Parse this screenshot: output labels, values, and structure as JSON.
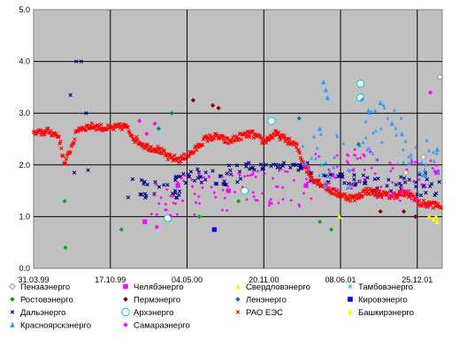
{
  "chart_data": {
    "type": "scatter",
    "grid": true,
    "legend_position": "bottom",
    "plot_background": "#c0c0c0",
    "ylim": [
      0.0,
      5.0
    ],
    "y_ticks": [
      {
        "value": 0,
        "label": "0.0"
      },
      {
        "value": 1,
        "label": "1.0"
      },
      {
        "value": 2,
        "label": "2.0"
      },
      {
        "value": 3,
        "label": "3.0"
      },
      {
        "value": 4,
        "label": "4.0"
      },
      {
        "value": 5,
        "label": "5.0"
      }
    ],
    "x_range": [
      "1999-03-31",
      "2002-02-28"
    ],
    "x_ticks": [
      {
        "date": "1999-03-31",
        "label": "31.03.99"
      },
      {
        "date": "1999-10-17",
        "label": "17.10.99"
      },
      {
        "date": "2000-05-04",
        "label": "04.05.00"
      },
      {
        "date": "2000-11-20",
        "label": "20.11.00"
      },
      {
        "date": "2001-06-08",
        "label": "08.06.01"
      },
      {
        "date": "2001-12-25",
        "label": "25.12.01"
      }
    ],
    "series": [
      {
        "name": "Пензаэнерго",
        "color": "#999999",
        "marker": "diamond-open",
        "points": [
          [
            "2002-02-22",
            3.7
          ],
          [
            "2002-01-10",
            2.15
          ],
          [
            "2001-11-25",
            1.85
          ]
        ]
      },
      {
        "name": "Челябэнерго",
        "color": "#ff00ff",
        "marker": "square",
        "points": [
          [
            "2000-01-15",
            0.9
          ],
          [
            "2000-04-10",
            1.6
          ],
          [
            "2000-08-20",
            1.5
          ],
          [
            "2001-03-10",
            1.6
          ],
          [
            "2002-01-20",
            1.2
          ]
        ]
      },
      {
        "name": "Свердловэнерго",
        "color": "#ffff00",
        "marker": "triangle",
        "points": [
          [
            "2001-06-05",
            1.0
          ],
          [
            "2002-01-25",
            1.0
          ],
          [
            "2002-02-15",
            0.9
          ]
        ]
      },
      {
        "name": "Тамбовэнерго",
        "color": "#00cccc",
        "marker": "x",
        "points": [
          [
            "2001-04-20",
            2.0
          ],
          [
            "2001-09-10",
            2.1
          ]
        ]
      },
      {
        "name": "Ростовэнерго",
        "color": "#00aa00",
        "marker": "diamond",
        "points": [
          [
            "1999-06-20",
            1.3
          ],
          [
            "1999-06-22",
            0.4
          ],
          [
            "1999-11-15",
            0.75
          ],
          [
            "2000-06-05",
            1.0
          ],
          [
            "2000-09-15",
            1.3
          ],
          [
            "2001-04-15",
            0.9
          ],
          [
            "2001-05-15",
            0.75
          ],
          [
            "2001-02-25",
            2.0
          ]
        ]
      },
      {
        "name": "Пермэнерго",
        "color": "#800000",
        "marker": "diamond",
        "points": [
          [
            "2000-05-20",
            3.25
          ],
          [
            "2000-07-10",
            3.15
          ],
          [
            "2000-07-25",
            3.1
          ],
          [
            "2001-09-20",
            1.1
          ],
          [
            "2001-11-20",
            1.1
          ],
          [
            "2001-12-20",
            1.0
          ]
        ]
      },
      {
        "name": "Ленэнерго",
        "color": "#008080",
        "marker": "diamond",
        "points": [
          [
            "2000-01-05",
            2.4
          ],
          [
            "2000-02-20",
            2.7
          ],
          [
            "2000-03-25",
            3.0
          ],
          [
            "2001-02-20",
            2.9
          ],
          [
            "2001-07-25",
            2.4
          ]
        ]
      },
      {
        "name": "Кировэнерго",
        "color": "#0000ff",
        "marker": "square",
        "points": [
          [
            "2000-07-14",
            0.75
          ]
        ]
      },
      {
        "name": "Дальэнерго",
        "color": "#000080",
        "marker": "x",
        "points": [
          [
            "1999-07-05",
            3.35
          ],
          [
            "1999-07-20",
            4.0
          ],
          [
            "1999-08-02",
            4.0
          ],
          [
            "1999-08-15",
            3.0
          ],
          [
            "1999-07-15",
            1.85
          ],
          [
            "1999-08-20",
            1.9
          ]
        ],
        "bands": [
          {
            "from": "1999-12-01",
            "to": "2000-04-15",
            "low": 1.35,
            "high": 1.8
          },
          {
            "from": "2000-04-15",
            "to": "2000-09-30",
            "low": 1.6,
            "high": 2.0
          },
          {
            "from": "2000-09-30",
            "to": "2001-03-15",
            "low": 1.9,
            "high": 2.05
          },
          {
            "from": "2001-03-15",
            "to": "2001-08-30",
            "low": 1.6,
            "high": 1.85
          },
          {
            "from": "2001-08-30",
            "to": "2002-02-28",
            "low": 1.4,
            "high": 1.85
          }
        ]
      },
      {
        "name": "Архэнерго",
        "color": "#00cccc",
        "marker": "circle-open",
        "points": [
          [
            "2000-03-15",
            0.97
          ],
          [
            "2000-10-01",
            1.5
          ],
          [
            "2000-12-10",
            2.85
          ],
          [
            "2001-07-30",
            3.57
          ],
          [
            "2001-07-30",
            3.3
          ]
        ]
      },
      {
        "name": "РАО ЕЭС",
        "color": "#ff0000",
        "marker": "x",
        "path": [
          [
            "1999-03-31",
            2.6
          ],
          [
            "1999-05-10",
            2.65
          ],
          [
            "1999-06-05",
            2.55
          ],
          [
            "1999-06-20",
            2.0
          ],
          [
            "1999-07-05",
            2.3
          ],
          [
            "1999-07-25",
            2.7
          ],
          [
            "1999-09-01",
            2.75
          ],
          [
            "1999-10-15",
            2.7
          ],
          [
            "1999-11-25",
            2.75
          ],
          [
            "1999-12-20",
            2.5
          ],
          [
            "2000-01-20",
            2.35
          ],
          [
            "2000-02-20",
            2.3
          ],
          [
            "2000-03-15",
            2.15
          ],
          [
            "2000-04-15",
            2.1
          ],
          [
            "2000-05-20",
            2.25
          ],
          [
            "2000-06-20",
            2.5
          ],
          [
            "2000-07-20",
            2.55
          ],
          [
            "2000-08-20",
            2.45
          ],
          [
            "2000-09-20",
            2.55
          ],
          [
            "2000-10-20",
            2.6
          ],
          [
            "2000-11-20",
            2.45
          ],
          [
            "2000-12-20",
            2.6
          ],
          [
            "2001-01-15",
            2.5
          ],
          [
            "2001-02-15",
            2.35
          ],
          [
            "2001-03-05",
            2.0
          ],
          [
            "2001-03-25",
            1.75
          ],
          [
            "2001-04-15",
            1.65
          ],
          [
            "2001-05-15",
            1.5
          ],
          [
            "2001-06-15",
            1.4
          ],
          [
            "2001-07-15",
            1.35
          ],
          [
            "2001-08-15",
            1.5
          ],
          [
            "2001-09-15",
            1.45
          ],
          [
            "2001-10-15",
            1.4
          ],
          [
            "2001-11-15",
            1.45
          ],
          [
            "2001-12-15",
            1.4
          ],
          [
            "2001-12-28",
            1.25
          ],
          [
            "2002-01-20",
            1.25
          ],
          [
            "2002-02-28",
            1.2
          ]
        ]
      },
      {
        "name": "Башкирэнерго",
        "color": "#ffff00",
        "marker": "triangle",
        "points": [
          [
            "2002-02-05",
            0.95
          ],
          [
            "2002-02-12",
            1.0
          ]
        ]
      },
      {
        "name": "Красноярскэнерго",
        "color": "#3399ff",
        "marker": "triangle",
        "points": [
          [
            "2001-04-25",
            3.6
          ],
          [
            "2001-05-01",
            3.45
          ],
          [
            "2001-05-05",
            3.3
          ],
          [
            "2001-04-15",
            2.7
          ],
          [
            "2001-08-20",
            3.05
          ],
          [
            "2001-09-20",
            3.2
          ],
          [
            "2001-10-20",
            2.8
          ],
          [
            "2001-11-15",
            2.6
          ],
          [
            "2001-12-10",
            2.05
          ],
          [
            "2002-01-15",
            1.8
          ],
          [
            "2002-02-15",
            2.3
          ]
        ],
        "bands": [
          {
            "from": "2001-03-01",
            "to": "2001-07-15",
            "low": 1.5,
            "high": 2.6
          },
          {
            "from": "2001-07-15",
            "to": "2001-11-15",
            "low": 2.2,
            "high": 3.3
          },
          {
            "from": "2001-11-15",
            "to": "2002-02-28",
            "low": 1.7,
            "high": 2.5
          }
        ]
      },
      {
        "name": "Самараэнерго",
        "color": "#ff00ff",
        "marker": "diamond",
        "points": [
          [
            "2000-01-01",
            2.85
          ],
          [
            "2000-01-20",
            2.6
          ],
          [
            "2000-02-10",
            2.8
          ],
          [
            "2002-01-28",
            3.4
          ],
          [
            "2000-02-15",
            0.8
          ]
        ],
        "bands": [
          {
            "from": "2000-01-15",
            "to": "2000-06-01",
            "low": 1.0,
            "high": 1.8
          },
          {
            "from": "2000-06-01",
            "to": "2000-11-01",
            "low": 1.1,
            "high": 1.85
          },
          {
            "from": "2000-11-01",
            "to": "2001-04-01",
            "low": 1.2,
            "high": 2.0
          },
          {
            "from": "2001-04-01",
            "to": "2001-09-01",
            "low": 1.5,
            "high": 2.3
          },
          {
            "from": "2001-09-01",
            "to": "2002-02-28",
            "low": 1.3,
            "high": 2.1
          }
        ]
      }
    ]
  }
}
